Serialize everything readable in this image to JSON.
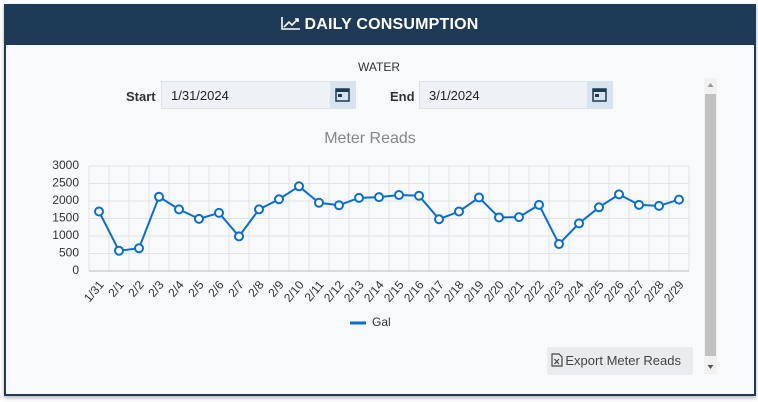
{
  "header": {
    "title": "DAILY CONSUMPTION"
  },
  "section": "WATER",
  "start": {
    "label": "Start",
    "value": "1/31/2024"
  },
  "end": {
    "label": "End",
    "value": "3/1/2024"
  },
  "export": "Export Meter Reads",
  "chart_data": {
    "type": "line",
    "title": "Meter Reads",
    "categories": [
      "1/31",
      "2/1",
      "2/2",
      "2/3",
      "2/4",
      "2/5",
      "2/6",
      "2/7",
      "2/8",
      "2/9",
      "2/10",
      "2/11",
      "2/12",
      "2/13",
      "2/14",
      "2/15",
      "2/16",
      "2/17",
      "2/18",
      "2/19",
      "2/20",
      "2/21",
      "2/22",
      "2/23",
      "2/24",
      "2/25",
      "2/26",
      "2/27",
      "2/28",
      "2/29"
    ],
    "series": [
      {
        "name": "Gal",
        "color": "#0a6ed1",
        "values": [
          1700,
          580,
          650,
          2120,
          1760,
          1490,
          1660,
          990,
          1760,
          2050,
          2420,
          1950,
          1880,
          2090,
          2110,
          2170,
          2150,
          1480,
          1700,
          2100,
          1530,
          1540,
          1890,
          770,
          1360,
          1820,
          2190,
          1890,
          1860,
          2040
        ]
      }
    ],
    "ylim": [
      0,
      3000
    ],
    "yticks": [
      0,
      500,
      1000,
      1500,
      2000,
      2500,
      3000
    ],
    "grid": true,
    "legend": "bottom"
  }
}
